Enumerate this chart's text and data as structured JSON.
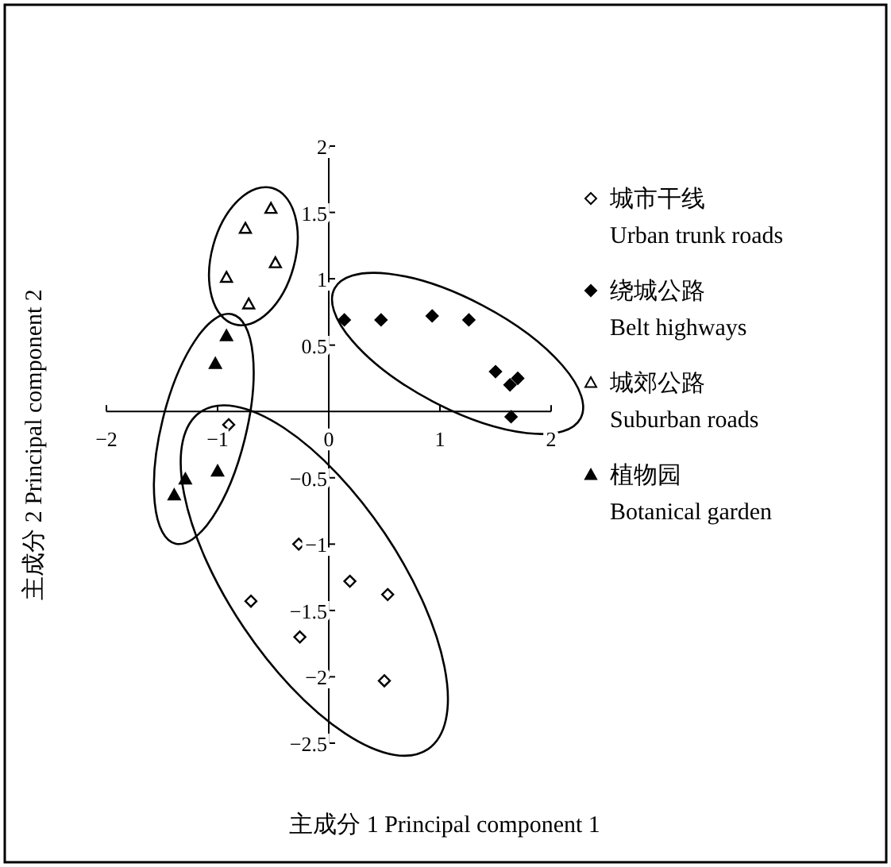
{
  "chart_data": {
    "type": "scatter",
    "xlabel": "主成分 1 Principal component 1",
    "ylabel": "主成分 2 Principal component 2",
    "xlim": [
      -2,
      2
    ],
    "ylim": [
      -2.5,
      2
    ],
    "xticks": [
      {
        "value": -2,
        "label": "−2"
      },
      {
        "value": -1,
        "label": "−1"
      },
      0,
      1,
      2
    ],
    "yticks": [
      {
        "value": -2.5,
        "label": "−2.5"
      },
      {
        "value": -2,
        "label": "−2"
      },
      {
        "value": -1.5,
        "label": "−1.5"
      },
      {
        "value": -1,
        "label": "−1"
      },
      {
        "value": -0.5,
        "label": "−0.5"
      },
      0.5,
      1,
      1.5,
      2
    ],
    "grid": false,
    "legend": "right",
    "series": [
      {
        "name": "城市干线\nUrban trunk roads",
        "color": "#ffffff",
        "marker": "diamond",
        "x": [
          -0.9,
          -0.27,
          0.19,
          0.53,
          -0.7,
          -0.26,
          0.5
        ],
        "values": [
          -0.1,
          -1.0,
          -1.28,
          -1.38,
          -1.43,
          -1.7,
          -2.03
        ]
      },
      {
        "name": "绕城公路\nBelt highways",
        "color": "#000000",
        "marker": "diamond",
        "x": [
          0.14,
          0.47,
          0.93,
          1.26,
          1.5,
          1.63,
          1.7,
          1.64
        ],
        "values": [
          0.69,
          0.69,
          0.72,
          0.69,
          0.3,
          0.2,
          0.25,
          -0.04
        ]
      },
      {
        "name": "城郊公路\nSuburban roads",
        "color": "#ffffff",
        "marker": "triangle",
        "x": [
          -0.52,
          -0.75,
          -0.48,
          -0.92,
          -0.72
        ],
        "values": [
          1.53,
          1.38,
          1.12,
          1.01,
          0.81
        ]
      },
      {
        "name": "植物园\nBotanical garden",
        "color": "#000000",
        "marker": "triangle",
        "x": [
          -0.92,
          -1.02,
          -1.39,
          -1.29,
          -1.0
        ],
        "values": [
          0.57,
          0.36,
          -0.63,
          -0.51,
          -0.45
        ]
      }
    ]
  }
}
